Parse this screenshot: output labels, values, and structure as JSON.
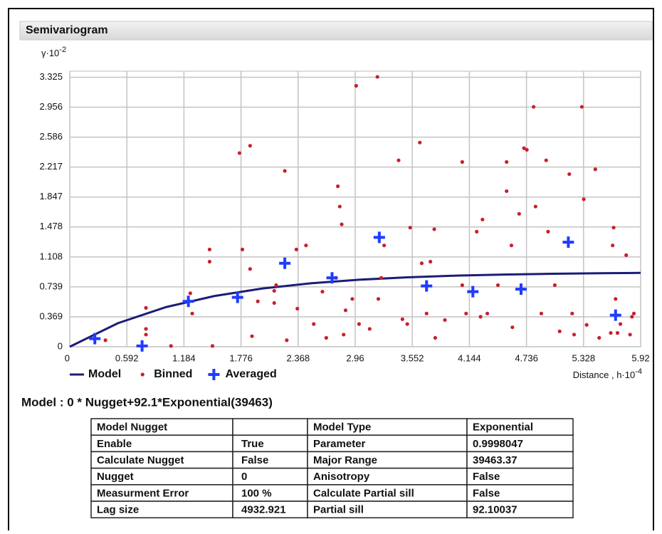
{
  "panel_title": "Semivariogram",
  "chart_data": {
    "type": "scatter",
    "y_label": "γ·10",
    "y_label_power": "-2",
    "x_label": "Distance , h·10",
    "x_label_power": "-4",
    "xlim": [
      0,
      5.92
    ],
    "ylim": [
      0,
      3.4
    ],
    "xticks": [
      0,
      0.592,
      1.184,
      1.776,
      2.368,
      2.96,
      3.552,
      4.144,
      4.736,
      5.328,
      5.92
    ],
    "yticks": [
      0,
      0.369,
      0.739,
      1.108,
      1.478,
      1.847,
      2.217,
      2.586,
      2.956,
      3.325
    ],
    "grid": true,
    "legend": "bottom-left",
    "series": [
      {
        "name": "Model",
        "kind": "line",
        "color": "#1c1c78",
        "x": [
          0,
          0.5,
          1,
          1.5,
          2,
          2.5,
          3,
          3.5,
          4,
          4.5,
          5,
          5.5,
          5.92
        ],
        "values": [
          0,
          0.291,
          0.49,
          0.626,
          0.719,
          0.783,
          0.827,
          0.857,
          0.877,
          0.891,
          0.9,
          0.907,
          0.911
        ]
      },
      {
        "name": "Binned",
        "kind": "dot",
        "color": "#c8202e",
        "x": [
          0.37,
          0.79,
          0.79,
          0.79,
          1.05,
          1.25,
          1.27,
          1.45,
          1.45,
          1.48,
          1.76,
          1.79,
          1.87,
          1.87,
          1.89,
          1.95,
          2.12,
          2.12,
          2.14,
          2.23,
          2.25,
          2.35,
          2.36,
          2.45,
          2.53,
          2.62,
          2.66,
          2.76,
          2.78,
          2.8,
          2.82,
          2.84,
          2.86,
          2.93,
          2.97,
          3.0,
          3.11,
          3.19,
          3.2,
          3.23,
          3.26,
          3.41,
          3.45,
          3.5,
          3.53,
          3.63,
          3.65,
          3.7,
          3.74,
          3.78,
          3.79,
          3.89,
          4.07,
          4.07,
          4.11,
          4.22,
          4.26,
          4.28,
          4.33,
          4.44,
          4.53,
          4.53,
          4.58,
          4.59,
          4.66,
          4.71,
          4.74,
          4.81,
          4.83,
          4.89,
          4.94,
          4.96,
          5.03,
          5.08,
          5.18,
          5.21,
          5.23,
          5.31,
          5.33,
          5.36,
          5.45,
          5.49,
          5.61,
          5.63,
          5.64,
          5.66,
          5.68,
          5.71,
          5.77,
          5.81,
          5.83,
          5.85
        ],
        "values": [
          0.08,
          0.48,
          0.22,
          0.15,
          0.01,
          0.66,
          0.41,
          1.2,
          1.05,
          0.01,
          2.39,
          1.2,
          2.48,
          0.96,
          0.13,
          0.56,
          0.69,
          0.54,
          0.76,
          2.17,
          0.08,
          1.2,
          0.47,
          1.25,
          0.28,
          0.68,
          0.11,
          0.85,
          1.98,
          1.73,
          1.51,
          0.15,
          0.45,
          0.59,
          3.22,
          0.28,
          0.22,
          3.33,
          0.59,
          0.85,
          1.25,
          2.3,
          0.34,
          0.28,
          1.47,
          2.52,
          1.03,
          0.41,
          1.05,
          1.45,
          0.11,
          0.33,
          2.28,
          0.76,
          0.41,
          1.42,
          0.37,
          1.57,
          0.41,
          0.76,
          2.28,
          1.92,
          1.25,
          0.24,
          1.64,
          2.45,
          2.43,
          2.96,
          1.73,
          0.41,
          2.3,
          1.42,
          0.76,
          0.19,
          2.13,
          0.41,
          0.15,
          2.96,
          1.82,
          0.27,
          2.19,
          0.11,
          0.17,
          1.25,
          1.47,
          0.59,
          0.17,
          0.28,
          1.13,
          0.15,
          0.37,
          0.41
        ]
      },
      {
        "name": "Averaged",
        "kind": "cross",
        "color": "#1f3cff",
        "x": [
          0.26,
          0.75,
          1.23,
          1.74,
          2.23,
          2.72,
          3.21,
          3.7,
          4.18,
          4.68,
          5.17,
          5.66
        ],
        "values": [
          0.1,
          0.01,
          0.56,
          0.61,
          1.03,
          0.85,
          1.35,
          0.75,
          0.68,
          0.71,
          1.29,
          0.39
        ]
      }
    ]
  },
  "model_text": "Model : 0 * Nugget+92.1*Exponential(39463)",
  "table": {
    "left": [
      [
        "Model Nugget"
      ],
      [
        "Enable",
        "True"
      ],
      [
        "Calculate Nugget",
        "False"
      ],
      [
        "Nugget",
        "0"
      ],
      [
        "Measurment Error",
        "100  %"
      ],
      [
        "Lag size",
        "4932.921"
      ]
    ],
    "right": [
      [
        "Model Type",
        "Exponential"
      ],
      [
        "Parameter",
        "0.9998047"
      ],
      [
        "Major Range",
        "39463.37"
      ],
      [
        "Anisotropy",
        "False"
      ],
      [
        "Calculate Partial sill",
        "False"
      ],
      [
        "Partial sill",
        "92.10037"
      ]
    ]
  }
}
